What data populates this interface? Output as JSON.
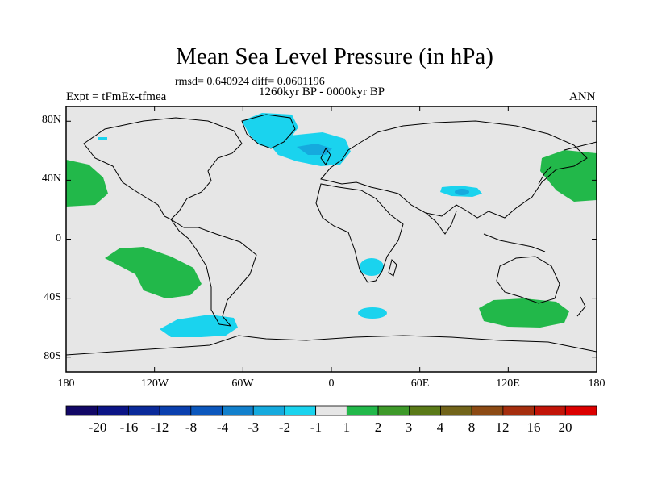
{
  "title": "Mean Sea Level Pressure (in hPa)",
  "stats_line": "rmsd= 0.640924 diff= 0.0601196",
  "period": "1260kyr BP - 0000kyr BP",
  "experiment": "Expt = tFmEx-tfmea",
  "season": "ANN",
  "axes": {
    "lat_labels": [
      "80N",
      "40N",
      "0",
      "40S",
      "80S"
    ],
    "lat_values": [
      80,
      40,
      0,
      -40,
      -80
    ],
    "lon_labels": [
      "180",
      "120W",
      "60W",
      "0",
      "60E",
      "120E",
      "180"
    ],
    "lon_values": [
      -180,
      -120,
      -60,
      0,
      60,
      120,
      180
    ],
    "lon_range": [
      -180,
      180
    ],
    "lat_range": [
      -90,
      90
    ]
  },
  "colorbar": {
    "labels": [
      "-20",
      "-16",
      "-12",
      "-8",
      "-4",
      "-3",
      "-2",
      "-1",
      "1",
      "2",
      "3",
      "4",
      "8",
      "12",
      "16",
      "20"
    ],
    "colors": [
      "#120766",
      "#0b1486",
      "#0a2a9a",
      "#0a3fae",
      "#0c57bd",
      "#1280cc",
      "#15aade",
      "#1ad3ee",
      "#e6e6e6",
      "#22b84a",
      "#3e9a2a",
      "#5a7a18",
      "#72641a",
      "#8c4a14",
      "#a52e0e",
      "#c21408",
      "#dc0000"
    ]
  },
  "map": {
    "background": "#e6e6e6",
    "positive_color": "#22b84a",
    "negative_color": "#1ad3ee",
    "negative_strong_color": "#15aade"
  }
}
